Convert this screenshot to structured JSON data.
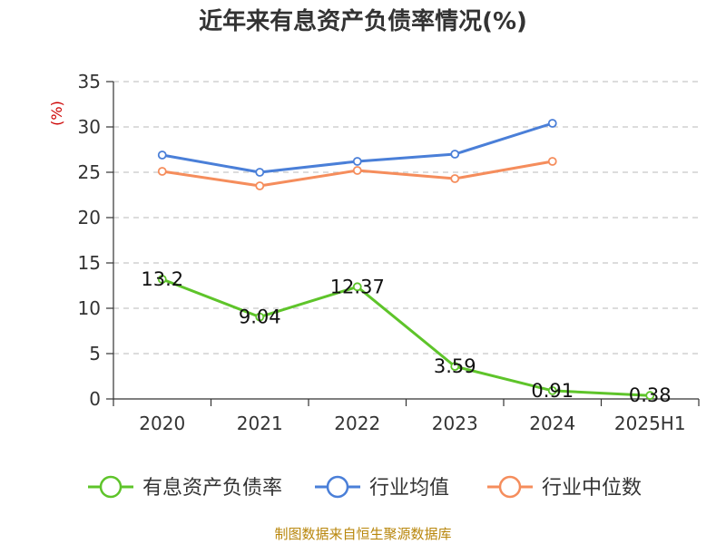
{
  "chart_data": {
    "type": "line",
    "title": "近年来有息资产负债率情况(%)",
    "ylabel": "(%)",
    "xlabel": "",
    "categories": [
      "2020",
      "2021",
      "2022",
      "2023",
      "2024",
      "2025H1"
    ],
    "ylim": [
      0,
      35
    ],
    "yticks": [
      0,
      5,
      10,
      15,
      20,
      25,
      30,
      35
    ],
    "grid": true,
    "legend_position": "bottom",
    "series": [
      {
        "name": "有息资产负债率",
        "color": "#5ec42a",
        "values": [
          13.2,
          9.04,
          12.37,
          3.59,
          0.91,
          0.38
        ],
        "labels": [
          "13.2",
          "9.04",
          "12.37",
          "3.59",
          "0.91",
          "0.38"
        ],
        "show_labels": true
      },
      {
        "name": "行业均值",
        "color": "#4a7fd8",
        "values": [
          26.9,
          25.0,
          26.2,
          27.0,
          30.4,
          null
        ],
        "show_labels": false
      },
      {
        "name": "行业中位数",
        "color": "#f58d5c",
        "values": [
          25.1,
          23.5,
          25.2,
          24.3,
          26.2,
          null
        ],
        "show_labels": false
      }
    ]
  },
  "source": "制图数据来自恒生聚源数据库"
}
